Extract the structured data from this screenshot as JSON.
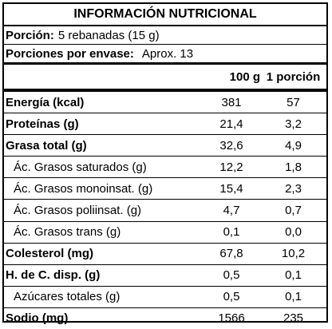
{
  "title": "INFORMACIÓN NUTRICIONAL",
  "serving": {
    "label": "Porción:",
    "value": "5 rebanadas (15 g)"
  },
  "servings_per_container": {
    "label": "Porciones por envase:",
    "value": "Aprox. 13"
  },
  "columns": {
    "per100": "100 g",
    "perServing": "1 porción"
  },
  "rows": [
    {
      "name": "Energía (kcal)",
      "per100": "381",
      "perServing": "57",
      "level": "main"
    },
    {
      "name": "Proteínas (g)",
      "per100": "21,4",
      "perServing": "3,2",
      "level": "main"
    },
    {
      "name": "Grasa total (g)",
      "per100": "32,6",
      "perServing": "4,9",
      "level": "main"
    },
    {
      "name": "Ác. Grasos saturados (g)",
      "per100": "12,2",
      "perServing": "1,8",
      "level": "sub"
    },
    {
      "name": "Ác. Grasos monoinsat. (g)",
      "per100": "15,4",
      "perServing": "2,3",
      "level": "sub"
    },
    {
      "name": "Ác. Grasos poliinsat. (g)",
      "per100": "4,7",
      "perServing": "0,7",
      "level": "sub"
    },
    {
      "name": "Ác. Grasos trans (g)",
      "per100": "0,1",
      "perServing": "0,0",
      "level": "sub"
    },
    {
      "name": "Colesterol (mg)",
      "per100": "67,8",
      "perServing": "10,2",
      "level": "main"
    },
    {
      "name": "H. de C. disp. (g)",
      "per100": "0,5",
      "perServing": "0,1",
      "level": "main"
    },
    {
      "name": "Azúcares totales (g)",
      "per100": "0,5",
      "perServing": "0,1",
      "level": "sub"
    },
    {
      "name": "Sodio (mg)",
      "per100": "1566",
      "perServing": "235",
      "level": "main"
    }
  ]
}
